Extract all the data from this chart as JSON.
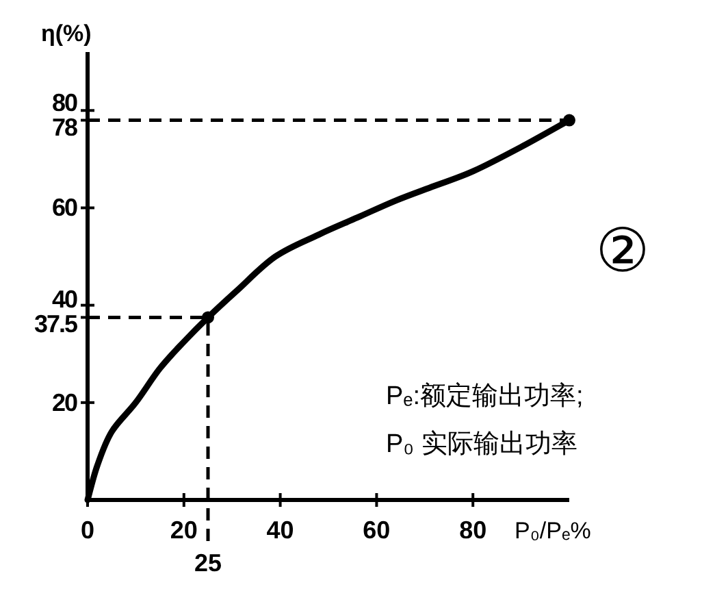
{
  "chart_data": {
    "type": "line",
    "xlabel": "P₀/Pₑ%",
    "ylabel": "η(%)",
    "xlim": [
      0,
      100
    ],
    "ylim": [
      0,
      92
    ],
    "xticks": [
      0,
      20,
      40,
      60,
      80
    ],
    "yticks": [
      20,
      37.5,
      40,
      60,
      78,
      80
    ],
    "grid": false,
    "series": [
      {
        "color": "#000000",
        "x": [
          0,
          2,
          5,
          10,
          15,
          20,
          25,
          31,
          39,
          48,
          56,
          64,
          72,
          80,
          90,
          100
        ],
        "values": [
          0,
          7,
          14,
          20,
          27,
          32.5,
          37.5,
          43,
          50,
          54.5,
          58,
          61.5,
          64.5,
          67.5,
          72.5,
          78
        ]
      },
      {
        "type": "scatter",
        "color": "#000000",
        "marker": "circle",
        "x": [
          25,
          100
        ],
        "values": [
          37.5,
          78
        ]
      }
    ],
    "ref_lines": [
      {
        "axis": "y",
        "value": 78,
        "line_style": "dashed"
      },
      {
        "axis": "y",
        "value": 37.5,
        "line_style": "dashed"
      },
      {
        "axis": "x",
        "value": 25,
        "line_style": "dashed"
      }
    ],
    "annotations": [
      "②",
      "Pₑ:额定输出功率;",
      "P₀ 实际输出功率",
      {
        "text": "25",
        "x": 25,
        "y": 0
      }
    ]
  }
}
